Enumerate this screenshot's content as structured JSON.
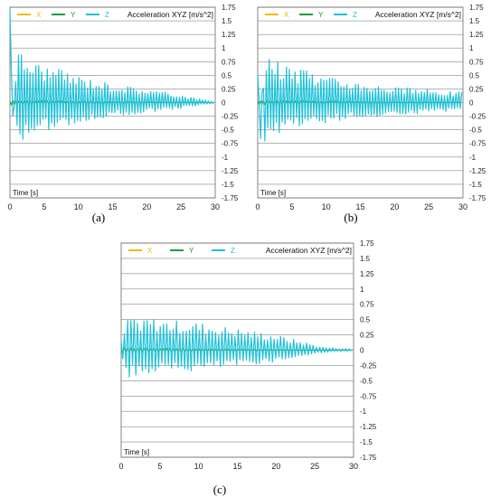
{
  "chart_data": [
    {
      "type": "line",
      "caption": "(a)",
      "title": "Acceleration XYZ [m/s^2]",
      "xlabel": "Time [s]",
      "xlim": [
        0,
        30
      ],
      "ylim": [
        -1.75,
        1.75
      ],
      "xticks": [
        "0",
        "5",
        "10",
        "15",
        "20",
        "25",
        "30"
      ],
      "yticks": [
        "1.75",
        "1.5",
        "1.25",
        "1",
        "0.75",
        "0.5",
        "0.25",
        "0",
        "-0.25",
        "-0.5",
        "-0.75",
        "-1",
        "-1.25",
        "-1.5",
        "-1.75"
      ],
      "grid": true,
      "legend": "top-left",
      "series": [
        {
          "name": "X",
          "color": "#f5b800",
          "amplitude": 0.03,
          "decay_end": 29
        },
        {
          "name": "Y",
          "color": "#1a9e3c",
          "amplitude": 0.05,
          "decay_end": 29
        },
        {
          "name": "Z",
          "color": "#1fc1d9",
          "peaks": [
            [
              0,
              1.7
            ],
            [
              0.2,
              -0.9
            ],
            [
              1,
              1.0
            ],
            [
              3,
              0.8
            ],
            [
              5,
              0.7
            ],
            [
              10,
              0.5
            ],
            [
              15,
              0.35
            ],
            [
              20,
              0.25
            ],
            [
              25,
              0.15
            ],
            [
              28,
              0.06
            ],
            [
              30,
              0.02
            ]
          ]
        }
      ]
    },
    {
      "type": "line",
      "caption": "(b)",
      "title": "Acceleration XYZ [m/s^2]",
      "xlabel": "Time [s]",
      "xlim": [
        0,
        30
      ],
      "ylim": [
        -1.75,
        1.75
      ],
      "xticks": [
        "0",
        "5",
        "10",
        "15",
        "20",
        "25",
        "30"
      ],
      "yticks": [
        "1.75",
        "1.5",
        "1.25",
        "1",
        "0.75",
        "0.5",
        "0.25",
        "0",
        "-0.25",
        "-0.5",
        "-0.75",
        "-1",
        "-1.25",
        "-1.5",
        "-1.75"
      ],
      "grid": true,
      "legend": "top-left",
      "series": [
        {
          "name": "X",
          "color": "#f5b800",
          "amplitude": 0.03,
          "decay_end": 30
        },
        {
          "name": "Y",
          "color": "#1a9e3c",
          "amplitude": 0.05,
          "decay_end": 30
        },
        {
          "name": "Z",
          "color": "#1fc1d9",
          "peaks": [
            [
              0,
              0.6
            ],
            [
              0.5,
              -0.95
            ],
            [
              1,
              0.95
            ],
            [
              3,
              0.75
            ],
            [
              5,
              0.65
            ],
            [
              10,
              0.5
            ],
            [
              15,
              0.4
            ],
            [
              20,
              0.3
            ],
            [
              25,
              0.25
            ],
            [
              30,
              0.2
            ]
          ]
        }
      ]
    },
    {
      "type": "line",
      "caption": "(c)",
      "title": "Acceleration XYZ [m/s^2]",
      "xlabel": "Time [s]",
      "xlim": [
        0,
        30
      ],
      "ylim": [
        -1.75,
        1.75
      ],
      "xticks": [
        "0",
        "5",
        "10",
        "15",
        "20",
        "25",
        "30"
      ],
      "yticks": [
        "1.75",
        "1.5",
        "1.25",
        "1",
        "0.75",
        "0.5",
        "0.25",
        "0",
        "-0.25",
        "-0.5",
        "-0.75",
        "-1",
        "-1.25",
        "-1.5",
        "-1.75"
      ],
      "grid": true,
      "legend": "top-left",
      "series": [
        {
          "name": "X",
          "color": "#f5b800",
          "amplitude": 0.03,
          "decay_end": 26
        },
        {
          "name": "Y",
          "color": "#1a9e3c",
          "amplitude": 0.04,
          "decay_end": 26
        },
        {
          "name": "Z",
          "color": "#1fc1d9",
          "peaks": [
            [
              0,
              0.15
            ],
            [
              1,
              0.6
            ],
            [
              3,
              0.55
            ],
            [
              5,
              0.5
            ],
            [
              10,
              0.45
            ],
            [
              15,
              0.35
            ],
            [
              20,
              0.25
            ],
            [
              24,
              0.12
            ],
            [
              26,
              0.05
            ],
            [
              30,
              0.02
            ]
          ]
        }
      ]
    }
  ]
}
